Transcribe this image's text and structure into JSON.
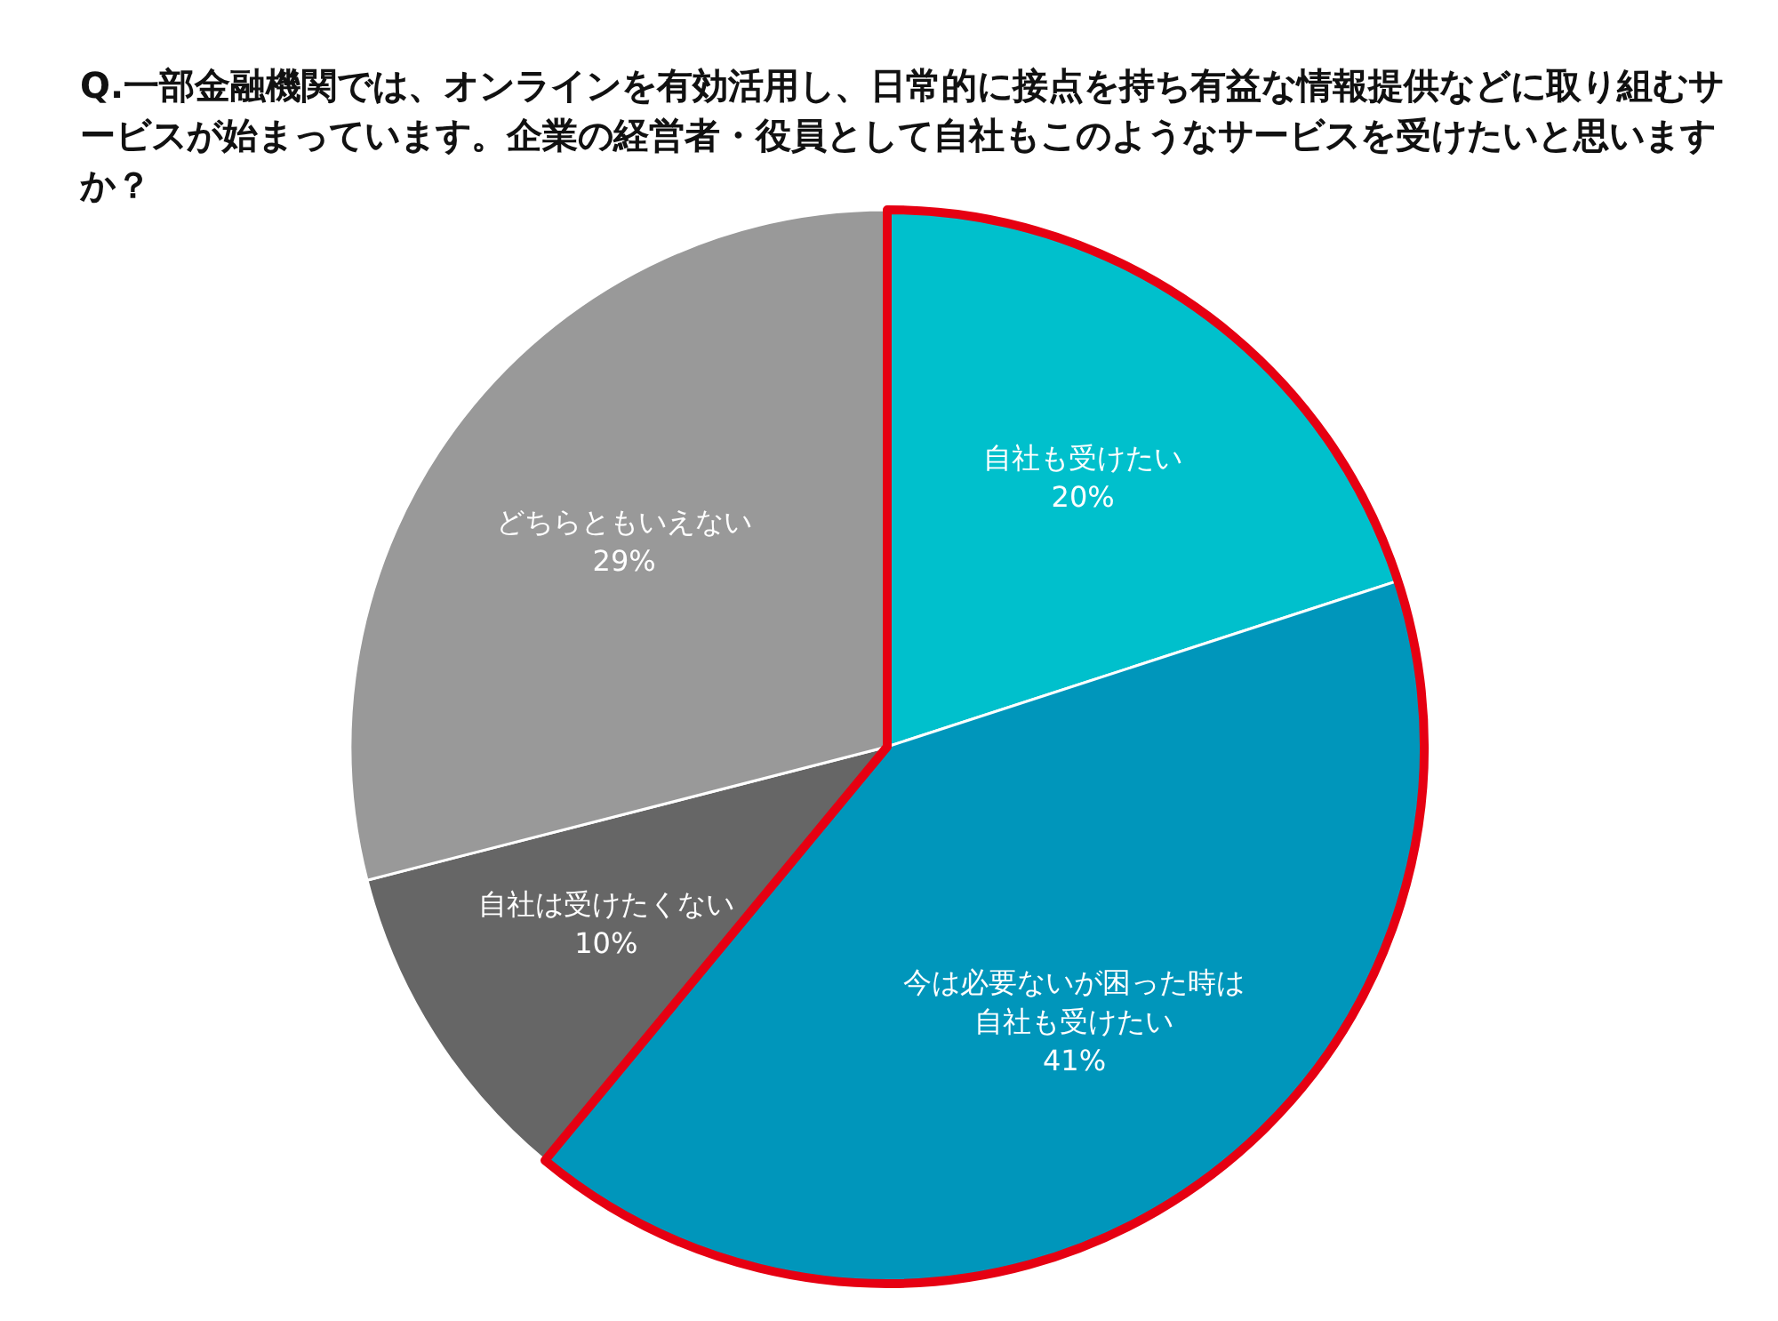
{
  "chart_data": {
    "type": "pie",
    "title": "Q.一部金融機関では、オンラインを有効活用し、日常的に接点を持ち有益な情報提供などに取り組むサービスが始まっています。企業の経営者・役員として自社もこのようなサービスを受けたいと思いますか？",
    "categories": [
      "自社も受けたい",
      "今は必要ないが困った時は自社も受けたい",
      "自社は受けたくない",
      "どちらともいえない"
    ],
    "values": [
      20,
      41,
      10,
      29
    ],
    "value_labels": [
      "20%",
      "41%",
      "10%",
      "29%"
    ],
    "colors": [
      "#00c0cc",
      "#0096bb",
      "#666666",
      "#999999"
    ]
  }
}
